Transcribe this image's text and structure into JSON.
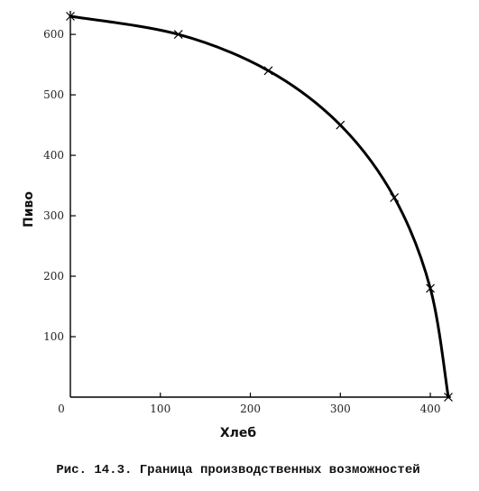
{
  "chart_data": {
    "type": "line",
    "title": "",
    "xlabel": "Хлеб",
    "ylabel": "Пиво",
    "xlim": [
      0,
      420
    ],
    "ylim": [
      0,
      630
    ],
    "x_ticks": [
      0,
      100,
      200,
      300,
      400
    ],
    "y_ticks": [
      100,
      200,
      300,
      400,
      500,
      600
    ],
    "x_tick_labels": [
      "0",
      "100",
      "200",
      "300",
      "400"
    ],
    "y_tick_labels": [
      "100",
      "200",
      "300",
      "400",
      "500",
      "600"
    ],
    "grid": false,
    "series": [
      {
        "type": "curve",
        "color": "#000000",
        "x": [
          0,
          120,
          220,
          300,
          360,
          400,
          420
        ],
        "y": [
          630,
          600,
          540,
          450,
          330,
          180,
          0
        ]
      }
    ],
    "markers": "x"
  },
  "caption": "Рис. 14.3. Граница производственных возможностей"
}
